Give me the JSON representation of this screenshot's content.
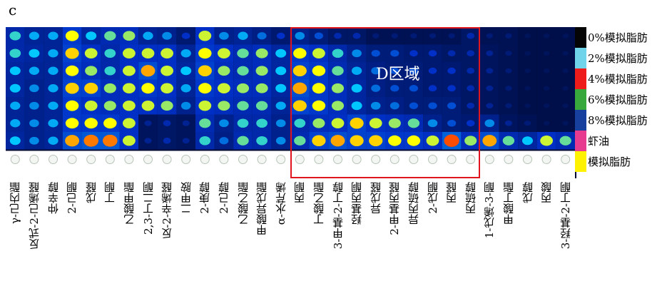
{
  "panel_label": "c",
  "region": {
    "label": "D区域",
    "color": "#e0161e",
    "start_col": 15,
    "end_col": 25
  },
  "legend": [
    {
      "label": "0%模拟脂肪",
      "color": "#050505"
    },
    {
      "label": "2%模拟脂肪",
      "color": "#6fd3ea"
    },
    {
      "label": "4%模拟脂肪",
      "color": "#ee1b1b"
    },
    {
      "label": "6%模拟脂肪",
      "color": "#37a93c"
    },
    {
      "label": "8%模拟脂肪",
      "color": "#163f9e"
    },
    {
      "label": "虾油",
      "color": "#e63b8e"
    },
    {
      "label": "模拟脂肪",
      "color": "#fff200"
    }
  ],
  "chart_data": {
    "type": "heatmap",
    "rows": [
      "0%模拟脂肪",
      "2%模拟脂肪",
      "4%模拟脂肪",
      "6%模拟脂肪",
      "8%模拟脂肪",
      "虾油",
      "模拟脂肪"
    ],
    "columns": [
      "γ-己内酯",
      "反式-2-己烯醛",
      "仲辛醇",
      "2-己酮",
      "戊醛",
      "丁酮",
      "乙酸甲酯",
      "2,3-丁二酮",
      "反-2-辛烯醛",
      "二甲胺",
      "2-庚醇",
      "2-己醇",
      "乙酸乙酯",
      "甲酸异戊酯",
      "α-水芹烯",
      "丙酮",
      "丁酸乙酯",
      "3-甲基-2-丁醇",
      "羟基丙酮",
      "异戊醛",
      "2-甲基丙醛",
      "异丙硫醇",
      "2-戊酮",
      "丙醛",
      "丙硫醇",
      "1-戊烯-3-酮",
      "甲酸丁酯",
      "戊醇",
      "丙酸",
      "3-羟基-2-丁酮"
    ],
    "values": [
      [
        0.55,
        0.45,
        0.45,
        0.75,
        0.5,
        0.6,
        0.65,
        0.45,
        0.4,
        0.25,
        0.7,
        0.4,
        0.45,
        0.35,
        0.25,
        0.4,
        0.3,
        0.2,
        0.2,
        0.1,
        0.1,
        0.1,
        0.1,
        0.1,
        0.2,
        0.1,
        0.1,
        0.05,
        0.05,
        0.05
      ],
      [
        0.55,
        0.5,
        0.45,
        0.8,
        0.7,
        0.55,
        0.7,
        0.7,
        0.7,
        0.45,
        0.75,
        0.7,
        0.6,
        0.65,
        0.5,
        0.75,
        0.7,
        0.55,
        0.4,
        0.3,
        0.3,
        0.25,
        0.25,
        0.2,
        0.2,
        0.15,
        0.1,
        0.05,
        0.05,
        0.05
      ],
      [
        0.5,
        0.45,
        0.45,
        0.75,
        0.65,
        0.55,
        0.7,
        0.85,
        0.7,
        0.5,
        0.8,
        0.65,
        0.6,
        0.65,
        0.5,
        0.8,
        0.75,
        0.6,
        0.45,
        0.35,
        0.3,
        0.3,
        0.25,
        0.25,
        0.2,
        0.15,
        0.1,
        0.05,
        0.05,
        0.05
      ],
      [
        0.5,
        0.4,
        0.45,
        0.8,
        0.8,
        0.65,
        0.7,
        0.75,
        0.7,
        0.45,
        0.75,
        0.7,
        0.65,
        0.65,
        0.5,
        0.85,
        0.75,
        0.65,
        0.5,
        0.35,
        0.3,
        0.3,
        0.25,
        0.25,
        0.2,
        0.15,
        0.1,
        0.05,
        0.05,
        0.05
      ],
      [
        0.45,
        0.4,
        0.45,
        0.75,
        0.7,
        0.65,
        0.7,
        0.7,
        0.65,
        0.4,
        0.7,
        0.65,
        0.6,
        0.6,
        0.45,
        0.8,
        0.75,
        0.65,
        0.5,
        0.4,
        0.35,
        0.3,
        0.3,
        0.3,
        0.2,
        0.15,
        0.1,
        0.05,
        0.05,
        0.05
      ],
      [
        0.45,
        0.4,
        0.45,
        0.75,
        0.75,
        0.75,
        0.7,
        0.15,
        0.2,
        0.15,
        0.6,
        0.4,
        0.55,
        0.55,
        0.4,
        0.55,
        0.65,
        0.7,
        0.8,
        0.7,
        0.65,
        0.6,
        0.4,
        0.3,
        0.25,
        0.4,
        0.15,
        0.1,
        0.05,
        0.05
      ],
      [
        0.5,
        0.4,
        0.45,
        0.85,
        0.9,
        0.9,
        0.7,
        0.15,
        0.2,
        0.15,
        0.55,
        0.35,
        0.6,
        0.55,
        0.4,
        0.6,
        0.8,
        0.85,
        0.8,
        0.8,
        0.75,
        0.75,
        0.7,
        0.95,
        0.65,
        0.85,
        0.6,
        0.5,
        0.7,
        0.6
      ]
    ],
    "color_scale": [
      "#000d40",
      "#0030c8",
      "#00c8ff",
      "#ffff00",
      "#ff2000"
    ]
  }
}
